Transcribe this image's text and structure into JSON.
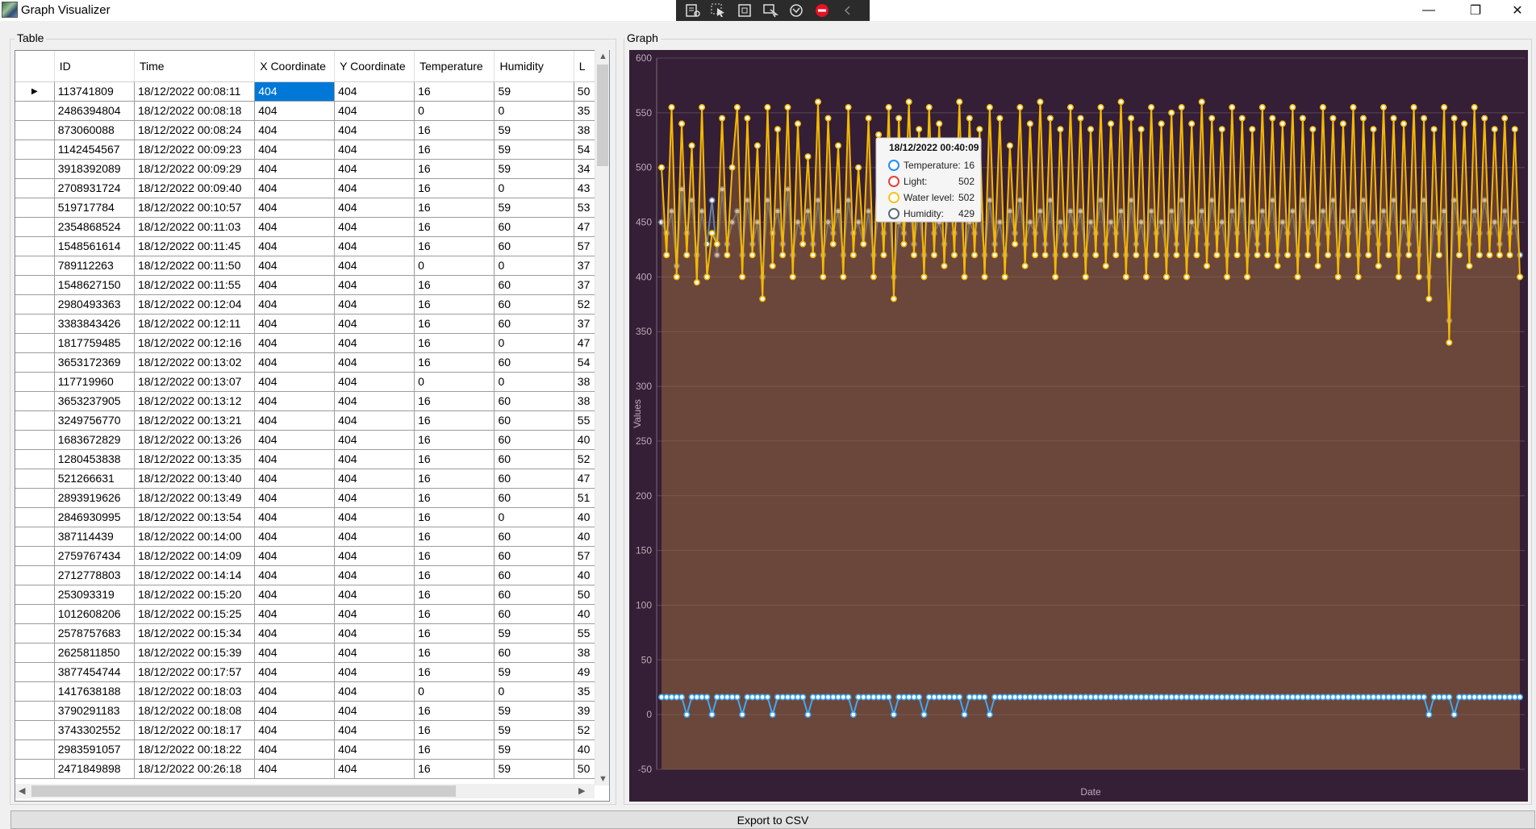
{
  "window": {
    "title": "Graph Visualizer",
    "minimize_glyph": "—",
    "restore_glyph": "❐",
    "close_glyph": "✕"
  },
  "table_group": {
    "title": "Table"
  },
  "graph_group": {
    "title": "Graph"
  },
  "table": {
    "columns": [
      "ID",
      "Time",
      "X Coordinate",
      "Y Coordinate",
      "Temperature",
      "Humidity",
      "L"
    ],
    "rows": [
      [
        "113741809",
        "18/12/2022 00:08:11",
        "404",
        "404",
        "16",
        "59",
        "50"
      ],
      [
        "2486394804",
        "18/12/2022 00:08:18",
        "404",
        "404",
        "0",
        "0",
        "35"
      ],
      [
        "873060088",
        "18/12/2022 00:08:24",
        "404",
        "404",
        "16",
        "59",
        "38"
      ],
      [
        "1142454567",
        "18/12/2022 00:09:23",
        "404",
        "404",
        "16",
        "59",
        "54"
      ],
      [
        "3918392089",
        "18/12/2022 00:09:29",
        "404",
        "404",
        "16",
        "59",
        "34"
      ],
      [
        "2708931724",
        "18/12/2022 00:09:40",
        "404",
        "404",
        "16",
        "0",
        "43"
      ],
      [
        "519717784",
        "18/12/2022 00:10:57",
        "404",
        "404",
        "16",
        "59",
        "53"
      ],
      [
        "2354868524",
        "18/12/2022 00:11:03",
        "404",
        "404",
        "16",
        "60",
        "47"
      ],
      [
        "1548561614",
        "18/12/2022 00:11:45",
        "404",
        "404",
        "16",
        "60",
        "57"
      ],
      [
        "789112263",
        "18/12/2022 00:11:50",
        "404",
        "404",
        "0",
        "0",
        "37"
      ],
      [
        "1548627150",
        "18/12/2022 00:11:55",
        "404",
        "404",
        "16",
        "60",
        "37"
      ],
      [
        "2980493363",
        "18/12/2022 00:12:04",
        "404",
        "404",
        "16",
        "60",
        "52"
      ],
      [
        "3383843426",
        "18/12/2022 00:12:11",
        "404",
        "404",
        "16",
        "60",
        "37"
      ],
      [
        "1817759485",
        "18/12/2022 00:12:16",
        "404",
        "404",
        "16",
        "0",
        "47"
      ],
      [
        "3653172369",
        "18/12/2022 00:13:02",
        "404",
        "404",
        "16",
        "60",
        "54"
      ],
      [
        "117719960",
        "18/12/2022 00:13:07",
        "404",
        "404",
        "0",
        "0",
        "38"
      ],
      [
        "3653237905",
        "18/12/2022 00:13:12",
        "404",
        "404",
        "16",
        "60",
        "38"
      ],
      [
        "3249756770",
        "18/12/2022 00:13:21",
        "404",
        "404",
        "16",
        "60",
        "55"
      ],
      [
        "1683672829",
        "18/12/2022 00:13:26",
        "404",
        "404",
        "16",
        "60",
        "40"
      ],
      [
        "1280453838",
        "18/12/2022 00:13:35",
        "404",
        "404",
        "16",
        "60",
        "52"
      ],
      [
        "521266631",
        "18/12/2022 00:13:40",
        "404",
        "404",
        "16",
        "60",
        "47"
      ],
      [
        "2893919626",
        "18/12/2022 00:13:49",
        "404",
        "404",
        "16",
        "60",
        "51"
      ],
      [
        "2846930995",
        "18/12/2022 00:13:54",
        "404",
        "404",
        "16",
        "0",
        "40"
      ],
      [
        "387114439",
        "18/12/2022 00:14:00",
        "404",
        "404",
        "16",
        "60",
        "40"
      ],
      [
        "2759767434",
        "18/12/2022 00:14:09",
        "404",
        "404",
        "16",
        "60",
        "57"
      ],
      [
        "2712778803",
        "18/12/2022 00:14:14",
        "404",
        "404",
        "16",
        "60",
        "40"
      ],
      [
        "253093319",
        "18/12/2022 00:15:20",
        "404",
        "404",
        "16",
        "60",
        "50"
      ],
      [
        "1012608206",
        "18/12/2022 00:15:25",
        "404",
        "404",
        "16",
        "60",
        "40"
      ],
      [
        "2578757683",
        "18/12/2022 00:15:34",
        "404",
        "404",
        "16",
        "59",
        "55"
      ],
      [
        "2625811850",
        "18/12/2022 00:15:39",
        "404",
        "404",
        "16",
        "60",
        "38"
      ],
      [
        "3877454744",
        "18/12/2022 00:17:57",
        "404",
        "404",
        "16",
        "59",
        "49"
      ],
      [
        "1417638188",
        "18/12/2022 00:18:03",
        "404",
        "404",
        "0",
        "0",
        "35"
      ],
      [
        "3790291183",
        "18/12/2022 00:18:08",
        "404",
        "404",
        "16",
        "59",
        "39"
      ],
      [
        "3743302552",
        "18/12/2022 00:18:17",
        "404",
        "404",
        "16",
        "59",
        "52"
      ],
      [
        "2983591057",
        "18/12/2022 00:18:22",
        "404",
        "404",
        "16",
        "59",
        "40"
      ],
      [
        "2471849898",
        "18/12/2022 00:26:18",
        "404",
        "404",
        "16",
        "59",
        "50"
      ]
    ]
  },
  "export_button": {
    "label": "Export to CSV"
  },
  "tooltip": {
    "title": "18/12/2022 00:40:09",
    "rows": [
      {
        "label": "Temperature:",
        "value": "16",
        "color": "#1e90ff"
      },
      {
        "label": "Light:",
        "value": "502",
        "color": "#e8403a"
      },
      {
        "label": "Water level:",
        "value": "502",
        "color": "#f5c518"
      },
      {
        "label": "Humidity:",
        "value": "429",
        "color": "#5a6b78"
      }
    ]
  },
  "colors": {
    "chart_bg": "#351f36",
    "temperature": "#3fa9f5",
    "light": "#ff3b30",
    "water_level": "#f5b800",
    "humidity": "#6a8597",
    "selection": "#0078d7"
  },
  "chart_data": {
    "type": "line",
    "xlabel": "Date",
    "ylabel": "Values",
    "ylim": [
      -50,
      600
    ],
    "yticks": [
      "600",
      "550",
      "500",
      "450",
      "400",
      "350",
      "300",
      "250",
      "200",
      "150",
      "100",
      "50",
      "0",
      "-50"
    ],
    "grid": true,
    "series": [
      {
        "name": "Temperature",
        "values": [
          16,
          16,
          16,
          16,
          16,
          0,
          16,
          16,
          16,
          16,
          0,
          16,
          16,
          16,
          16,
          16,
          0,
          16,
          16,
          16,
          16,
          16,
          0,
          16,
          16,
          16,
          16,
          16,
          16,
          0,
          16,
          16,
          16,
          16,
          16,
          16,
          16,
          16,
          0,
          16,
          16,
          16,
          16,
          16,
          16,
          16,
          0,
          16,
          16,
          16,
          16,
          16,
          0,
          16,
          16,
          16,
          16,
          16,
          16,
          16,
          0,
          16,
          16,
          16,
          16,
          0,
          16,
          16,
          16,
          16,
          16,
          16,
          16,
          16,
          16,
          16,
          16,
          16,
          16,
          16,
          16,
          16,
          16,
          16,
          16,
          16,
          16,
          16,
          16,
          16,
          16,
          16,
          16,
          16,
          16,
          16,
          16,
          16,
          16,
          16,
          16,
          16,
          16,
          16,
          16,
          16,
          16,
          16,
          16,
          16,
          16,
          16,
          16,
          16,
          16,
          16,
          16,
          16,
          16,
          16,
          16,
          16,
          16,
          16,
          16,
          16,
          16,
          16,
          16,
          16,
          16,
          16,
          16,
          16,
          16,
          16,
          16,
          16,
          16,
          16,
          16,
          16,
          16,
          16,
          16,
          16,
          16,
          16,
          16,
          16,
          16,
          16,
          0,
          16,
          16,
          16,
          16,
          0,
          16,
          16,
          16,
          16,
          16,
          16,
          16,
          16,
          16,
          16,
          16,
          16,
          16
        ]
      },
      {
        "name": "Water level",
        "values": [
          500,
          420,
          555,
          400,
          540,
          420,
          520,
          395,
          555,
          400,
          440,
          430,
          545,
          420,
          500,
          555,
          400,
          545,
          420,
          520,
          380,
          555,
          410,
          535,
          420,
          555,
          400,
          540,
          430,
          510,
          420,
          560,
          400,
          545,
          430,
          520,
          400,
          555,
          420,
          500,
          430,
          545,
          400,
          530,
          420,
          555,
          380,
          545,
          430,
          560,
          420,
          535,
          400,
          555,
          420,
          540,
          410,
          520,
          420,
          560,
          400,
          545,
          420,
          535,
          400,
          555,
          420,
          545,
          400,
          520,
          430,
          555,
          410,
          540,
          420,
          560,
          420,
          545,
          400,
          535,
          420,
          555,
          420,
          545,
          400,
          535,
          420,
          555,
          410,
          540,
          420,
          560,
          400,
          545,
          420,
          535,
          400,
          555,
          420,
          540,
          400,
          550,
          420,
          555,
          400,
          540,
          420,
          560,
          410,
          545,
          420,
          535,
          400,
          555,
          420,
          545,
          400,
          535,
          420,
          555,
          420,
          545,
          410,
          540,
          420,
          555,
          400,
          545,
          420,
          535,
          410,
          555,
          420,
          545,
          400,
          540,
          420,
          555,
          400,
          545,
          420,
          535,
          410,
          555,
          420,
          545,
          400,
          540,
          420,
          555,
          400,
          545,
          380,
          535,
          420,
          555,
          340,
          545,
          420,
          540,
          410,
          555,
          420,
          545,
          420,
          535,
          420,
          545,
          420,
          535,
          400
        ]
      },
      {
        "name": "Humidity",
        "values": [
          450,
          440,
          460,
          410,
          480,
          440,
          470,
          420,
          460,
          430,
          470,
          420,
          480,
          430,
          450,
          460,
          420,
          470,
          430,
          450,
          400,
          470,
          440,
          460,
          430,
          480,
          420,
          450,
          440,
          460,
          430,
          470,
          420,
          450,
          440,
          460,
          420,
          470,
          440,
          450,
          430,
          460,
          420,
          460,
          440,
          470,
          400,
          450,
          440,
          470,
          430,
          460,
          420,
          480,
          440,
          450,
          430,
          460,
          440,
          470,
          420,
          450,
          440,
          460,
          420,
          470,
          430,
          450,
          420,
          460,
          440,
          470,
          430,
          450,
          440,
          460,
          430,
          470,
          420,
          450,
          430,
          460,
          440,
          460,
          420,
          450,
          440,
          470,
          430,
          450,
          440,
          460,
          420,
          470,
          430,
          450,
          420,
          460,
          440,
          450,
          420,
          460,
          430,
          470,
          420,
          450,
          440,
          460,
          430,
          470,
          440,
          450,
          420,
          460,
          440,
          470,
          420,
          450,
          430,
          460,
          440,
          470,
          420,
          450,
          440,
          460,
          420,
          470,
          440,
          450,
          430,
          460,
          440,
          470,
          420,
          450,
          440,
          460,
          420,
          470,
          440,
          450,
          430,
          460,
          440,
          470,
          420,
          450,
          430,
          460,
          420,
          470,
          400,
          450,
          440,
          460,
          360,
          470,
          440,
          450,
          430,
          460,
          440,
          470,
          440,
          450,
          430,
          460,
          440,
          450,
          420
        ]
      }
    ]
  }
}
